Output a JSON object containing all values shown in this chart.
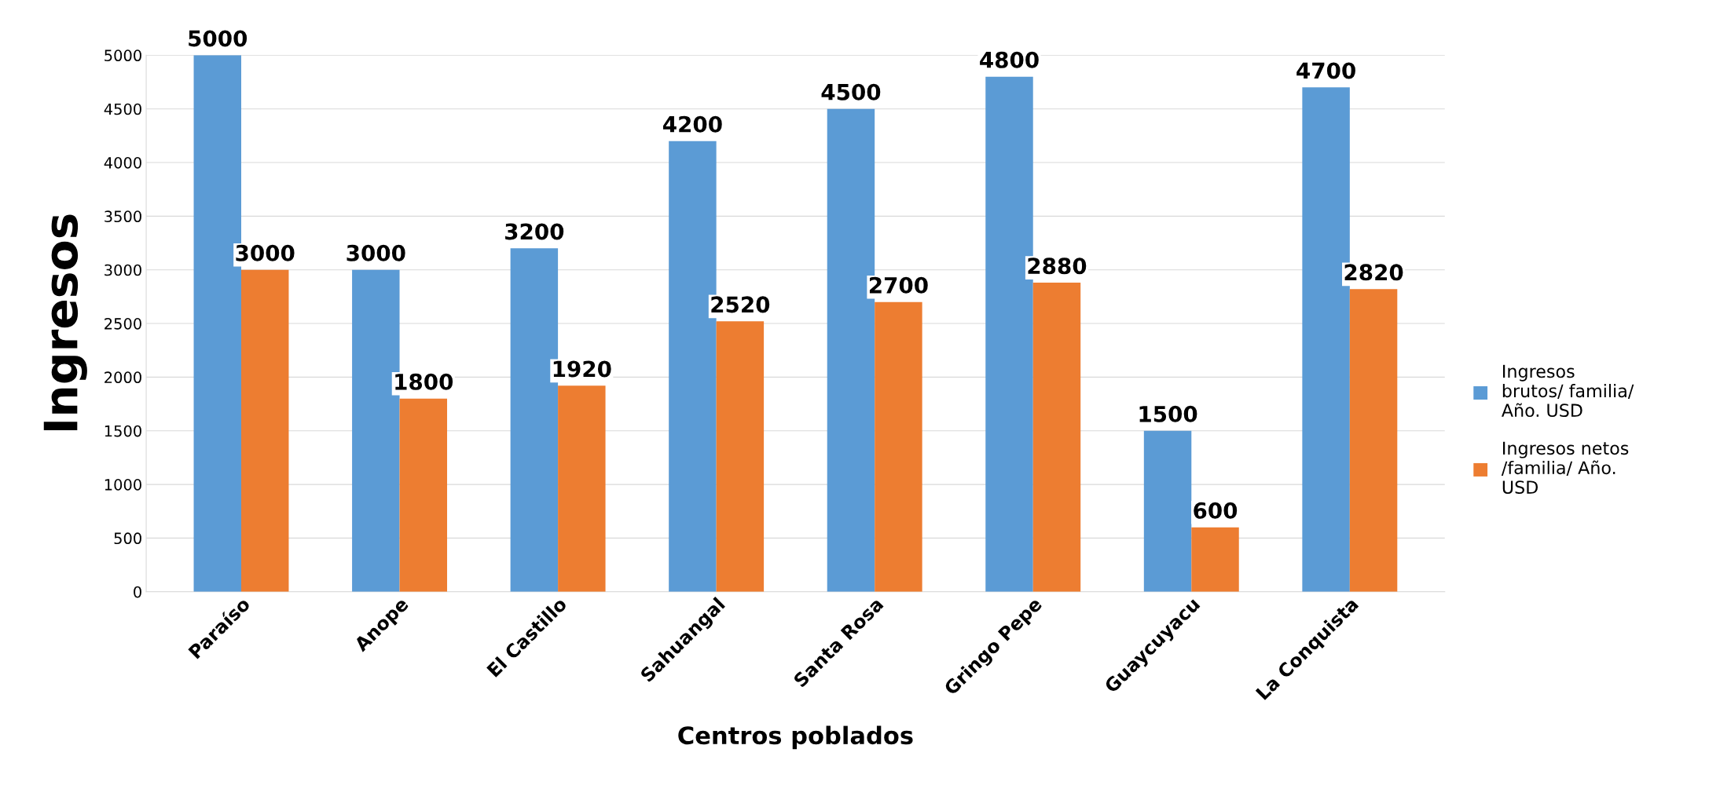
{
  "chart_data": {
    "type": "bar",
    "xlabel": "Centros poblados",
    "ylabel": "Ingresos",
    "categories": [
      "Paraíso",
      "Anope",
      "El Castillo",
      "Sahuangal",
      "Santa Rosa",
      "Gringo Pepe",
      "Guaycuyacu",
      "La Conquista"
    ],
    "series": [
      {
        "name": "Ingresos\nbrutos/ familia/\nAño. USD",
        "color": "#5b9bd5",
        "values": [
          5000,
          3000,
          3200,
          4200,
          4500,
          4800,
          1500,
          4700
        ]
      },
      {
        "name": "Ingresos netos\n/familia/ Año.\nUSD",
        "color": "#ed7d31",
        "values": [
          3000,
          1800,
          1920,
          2520,
          2700,
          2880,
          600,
          2820
        ]
      }
    ],
    "ylim": [
      0,
      5000
    ],
    "yticks": [
      0,
      500,
      1000,
      1500,
      2000,
      2500,
      3000,
      3500,
      4000,
      4500,
      5000
    ],
    "grid": "y",
    "legend": "right",
    "data_labels": true
  }
}
